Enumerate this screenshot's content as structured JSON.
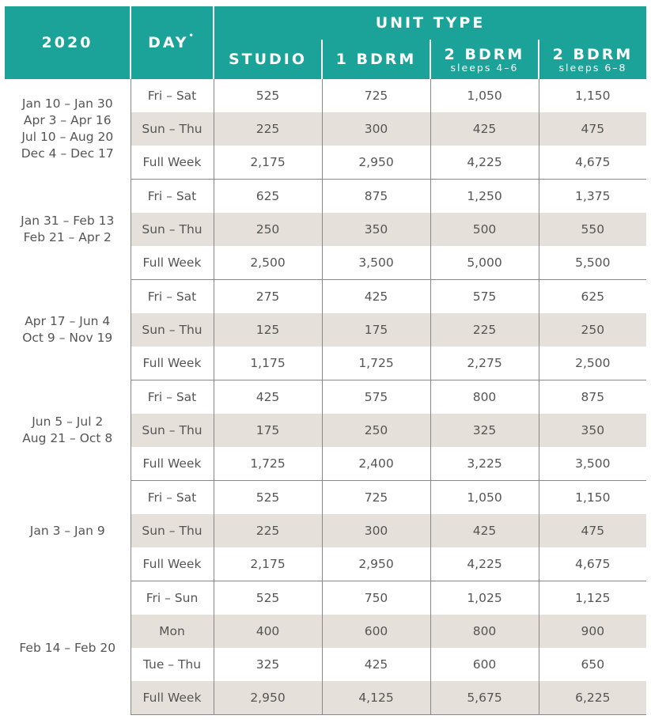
{
  "header": {
    "year": "2020",
    "day": "DAY",
    "day_mark": "•",
    "unit_type": "UNIT TYPE",
    "studio": "STUDIO",
    "bdrm1": "1 BDRM",
    "bdrm2a": "2 BDRM",
    "bdrm2a_sub": "sleeps 4–6",
    "bdrm2b": "2 BDRM",
    "bdrm2b_sub": "sleeps 6–8"
  },
  "colors": {
    "header_bg": "#1ba399",
    "shade": "#e5e1da",
    "text": "#555555"
  },
  "groups": [
    {
      "season": [
        "Jan 10 – Jan 30",
        "Apr 3 – Apr 16",
        "Jul 10 – Aug 20",
        "Dec 4 – Dec 17"
      ],
      "rows": [
        {
          "day": "Fri – Sat",
          "v": [
            "525",
            "725",
            "1,050",
            "1,150"
          ]
        },
        {
          "day": "Sun – Thu",
          "v": [
            "225",
            "300",
            "425",
            "475"
          ]
        },
        {
          "day": "Full Week",
          "v": [
            "2,175",
            "2,950",
            "4,225",
            "4,675"
          ]
        }
      ]
    },
    {
      "season": [
        "Jan 31 – Feb 13",
        "Feb 21 – Apr 2"
      ],
      "rows": [
        {
          "day": "Fri – Sat",
          "v": [
            "625",
            "875",
            "1,250",
            "1,375"
          ]
        },
        {
          "day": "Sun – Thu",
          "v": [
            "250",
            "350",
            "500",
            "550"
          ]
        },
        {
          "day": "Full Week",
          "v": [
            "2,500",
            "3,500",
            "5,000",
            "5,500"
          ]
        }
      ]
    },
    {
      "season": [
        "Apr 17 – Jun 4",
        "Oct 9 – Nov 19"
      ],
      "rows": [
        {
          "day": "Fri – Sat",
          "v": [
            "275",
            "425",
            "575",
            "625"
          ]
        },
        {
          "day": "Sun – Thu",
          "v": [
            "125",
            "175",
            "225",
            "250"
          ]
        },
        {
          "day": "Full Week",
          "v": [
            "1,175",
            "1,725",
            "2,275",
            "2,500"
          ]
        }
      ]
    },
    {
      "season": [
        "Jun 5 – Jul 2",
        "Aug 21 – Oct 8"
      ],
      "rows": [
        {
          "day": "Fri – Sat",
          "v": [
            "425",
            "575",
            "800",
            "875"
          ]
        },
        {
          "day": "Sun – Thu",
          "v": [
            "175",
            "250",
            "325",
            "350"
          ]
        },
        {
          "day": "Full Week",
          "v": [
            "1,725",
            "2,400",
            "3,225",
            "3,500"
          ]
        }
      ]
    },
    {
      "season": [
        "Jan 3 – Jan 9"
      ],
      "rows": [
        {
          "day": "Fri – Sat",
          "v": [
            "525",
            "725",
            "1,050",
            "1,150"
          ]
        },
        {
          "day": "Sun – Thu",
          "v": [
            "225",
            "300",
            "425",
            "475"
          ]
        },
        {
          "day": "Full Week",
          "v": [
            "2,175",
            "2,950",
            "4,225",
            "4,675"
          ]
        }
      ]
    },
    {
      "season": [
        "Feb 14 – Feb 20"
      ],
      "rows": [
        {
          "day": "Fri – Sun",
          "v": [
            "525",
            "750",
            "1,025",
            "1,125"
          ]
        },
        {
          "day": "Mon",
          "v": [
            "400",
            "600",
            "800",
            "900"
          ]
        },
        {
          "day": "Tue – Thu",
          "v": [
            "325",
            "425",
            "600",
            "650"
          ]
        },
        {
          "day": "Full Week",
          "v": [
            "2,950",
            "4,125",
            "5,675",
            "6,225"
          ]
        }
      ]
    }
  ]
}
